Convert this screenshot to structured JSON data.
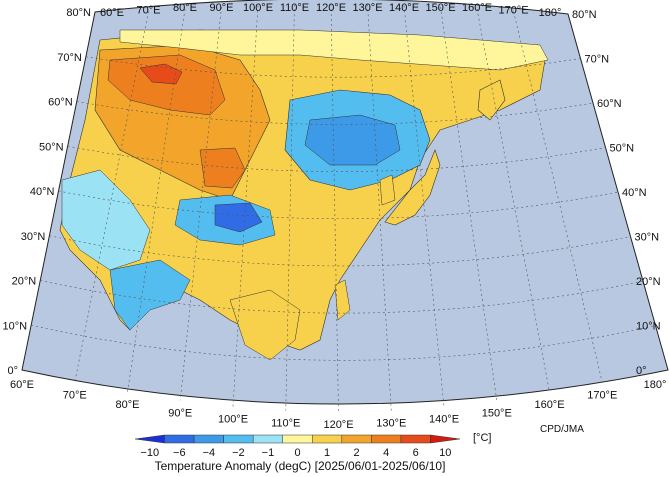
{
  "map": {
    "top_lon_labels": [
      "60°E",
      "70°E",
      "80°E",
      "90°E",
      "100°E",
      "110°E",
      "120°E",
      "130°E",
      "140°E",
      "150°E",
      "160°E",
      "170°E",
      "180°"
    ],
    "bottom_lon_labels": [
      "60°E",
      "70°E",
      "80°E",
      "90°E",
      "100°E",
      "110°E",
      "120°E",
      "130°E",
      "140°E",
      "150°E",
      "160°E",
      "170°E",
      "180°"
    ],
    "left_lat_labels": [
      "80°N",
      "70°N",
      "60°N",
      "50°N",
      "40°N",
      "30°N",
      "20°N",
      "10°N",
      "0°"
    ],
    "right_lat_labels": [
      "80°N",
      "70°N",
      "60°N",
      "50°N",
      "40°N",
      "30°N",
      "20°N",
      "10°N",
      "0°"
    ],
    "ocean_color": "#b8c8e0",
    "credit": "CPD/JMA"
  },
  "legend": {
    "unit": "[°C]",
    "ticks": [
      "−10",
      "−6",
      "−4",
      "−2",
      "−1",
      "0",
      "1",
      "2",
      "4",
      "6",
      "10"
    ],
    "colors": [
      "#1a2fd6",
      "#2f6ce6",
      "#3d9ae9",
      "#54bdf0",
      "#9be3f4",
      "#fff59a",
      "#f7d14b",
      "#f2a52a",
      "#ee7f1e",
      "#e84b1a",
      "#d41b10"
    ],
    "title": "Temperature Anomaly (degC) [2025/06/01-2025/06/10]"
  }
}
